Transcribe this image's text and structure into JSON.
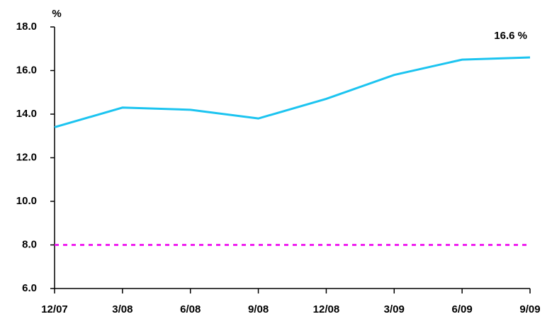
{
  "chart_data": {
    "type": "line",
    "unit_label": "%",
    "annotation": "16.6 %",
    "categories": [
      "12/07",
      "3/08",
      "6/08",
      "9/08",
      "12/08",
      "3/09",
      "6/09",
      "9/09"
    ],
    "series": [
      {
        "color": "#1cc4f0",
        "values": [
          13.4,
          14.3,
          14.2,
          13.8,
          14.7,
          15.8,
          16.5,
          16.6
        ]
      }
    ],
    "reference_line": {
      "value": 8,
      "color": "#f020f0"
    },
    "ylim": [
      6,
      18
    ],
    "yticks": [
      {
        "value": 6,
        "label": "6.0"
      },
      {
        "value": 8,
        "label": "8.0"
      },
      {
        "value": 10,
        "label": "10.0"
      },
      {
        "value": 12,
        "label": "12.0"
      },
      {
        "value": 14,
        "label": "14.0"
      },
      {
        "value": 16,
        "label": "16.0"
      },
      {
        "value": 18,
        "label": "18.0"
      }
    ]
  }
}
